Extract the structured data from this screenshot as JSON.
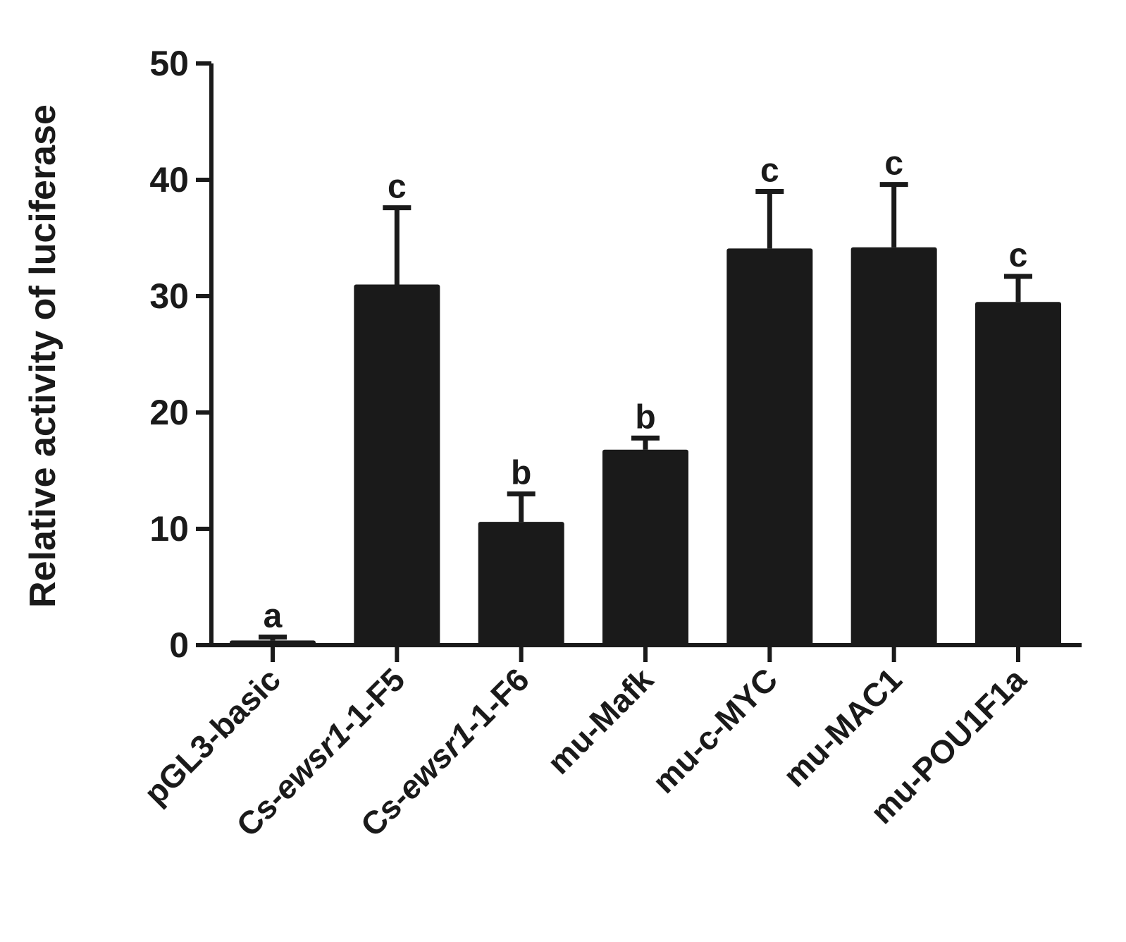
{
  "chart_data": {
    "type": "bar",
    "title": "",
    "xlabel": "",
    "ylabel": "Relative activity of luciferase",
    "ylim": [
      0,
      50
    ],
    "yticks": [
      0,
      10,
      20,
      30,
      40,
      50
    ],
    "grid": false,
    "bar_color": "#1a1a1a",
    "categories": [
      "pGL3-basic",
      "Cs-ewsr1-1-F5",
      "Cs-ewsr1-1-F6",
      "mu-Mafk",
      "mu-c-MYC",
      "mu-MAC1",
      "mu-POU1F1a"
    ],
    "italic_parts": [
      "",
      "ewsr1",
      "ewsr1",
      "",
      "",
      "",
      ""
    ],
    "values": [
      0.4,
      31.0,
      10.6,
      16.8,
      34.1,
      34.2,
      29.5
    ],
    "error_upper": [
      0.7,
      37.6,
      13.0,
      17.8,
      39.0,
      39.6,
      31.7
    ],
    "significance_letters": [
      "a",
      "c",
      "b",
      "b",
      "c",
      "c",
      "c"
    ]
  }
}
